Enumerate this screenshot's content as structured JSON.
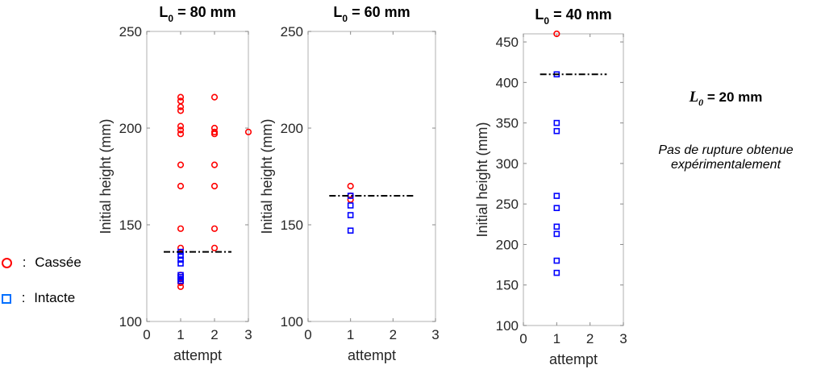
{
  "chart_data": [
    {
      "type": "scatter",
      "title": "L0 = 80 mm",
      "title_main": "L",
      "title_sub": "0",
      "title_rest": " = 80 mm",
      "xlabel": "attempt",
      "ylabel": "Initial height (mm)",
      "xlim": [
        0,
        3
      ],
      "ylim": [
        100,
        250
      ],
      "xticks": [
        0,
        1,
        2,
        3
      ],
      "yticks": [
        100,
        150,
        200,
        250
      ],
      "threshold": 136,
      "threshold_x": [
        0.5,
        2.5
      ],
      "series": [
        {
          "name": "Cassée",
          "marker": "circle",
          "color": "#ff0000",
          "points": [
            [
              1,
              216
            ],
            [
              1,
              214
            ],
            [
              1,
              211
            ],
            [
              1,
              209
            ],
            [
              1,
              201
            ],
            [
              1,
              199
            ],
            [
              1,
              197
            ],
            [
              1,
              181
            ],
            [
              1,
              170
            ],
            [
              1,
              148
            ],
            [
              1,
              138
            ],
            [
              1,
              124
            ],
            [
              1,
              122
            ],
            [
              1,
              120
            ],
            [
              1,
              118
            ],
            [
              2,
              216
            ],
            [
              2,
              200
            ],
            [
              2,
              198
            ],
            [
              2,
              197
            ],
            [
              2,
              181
            ],
            [
              2,
              170
            ],
            [
              2,
              148
            ],
            [
              2,
              138
            ],
            [
              3,
              198
            ]
          ]
        },
        {
          "name": "Intacte",
          "marker": "square",
          "color": "#0000ff",
          "points": [
            [
              1,
              136
            ],
            [
              1,
              134
            ],
            [
              1,
              132
            ],
            [
              1,
              130
            ],
            [
              1,
              124
            ],
            [
              1,
              123
            ],
            [
              1,
              122
            ],
            [
              1,
              121
            ]
          ]
        }
      ]
    },
    {
      "type": "scatter",
      "title": "L0 = 60 mm",
      "title_main": "L",
      "title_sub": "0",
      "title_rest": " = 60 mm",
      "xlabel": "attempt",
      "ylabel": "Initial height (mm)",
      "xlim": [
        0,
        3
      ],
      "ylim": [
        100,
        250
      ],
      "xticks": [
        0,
        1,
        2,
        3
      ],
      "yticks": [
        100,
        150,
        200,
        250
      ],
      "threshold": 165,
      "threshold_x": [
        0.5,
        2.5
      ],
      "series": [
        {
          "name": "Cassée",
          "marker": "circle",
          "color": "#ff0000",
          "points": [
            [
              1,
              170
            ],
            [
              1,
              165
            ],
            [
              1,
              163
            ]
          ]
        },
        {
          "name": "Intacte",
          "marker": "square",
          "color": "#0000ff",
          "points": [
            [
              1,
              165
            ],
            [
              1,
              160
            ],
            [
              1,
              155
            ],
            [
              1,
              147
            ]
          ]
        }
      ]
    },
    {
      "type": "scatter",
      "title": "L0 = 40 mm",
      "title_main": "L",
      "title_sub": "0",
      "title_rest": " = 40 mm",
      "xlabel": "attempt",
      "ylabel": "Initial height (mm)",
      "xlim": [
        0,
        3
      ],
      "ylim": [
        100,
        460
      ],
      "xticks": [
        0,
        1,
        2,
        3
      ],
      "yticks": [
        100,
        150,
        200,
        250,
        300,
        350,
        400,
        450
      ],
      "threshold": 410,
      "threshold_x": [
        0.5,
        2.5
      ],
      "series": [
        {
          "name": "Cassée",
          "marker": "circle",
          "color": "#ff0000",
          "points": [
            [
              1,
              460
            ]
          ]
        },
        {
          "name": "Intacte",
          "marker": "square",
          "color": "#0000ff",
          "points": [
            [
              1,
              410
            ],
            [
              1,
              350
            ],
            [
              1,
              340
            ],
            [
              1,
              260
            ],
            [
              1,
              245
            ],
            [
              1,
              222
            ],
            [
              1,
              213
            ],
            [
              1,
              180
            ],
            [
              1,
              165
            ]
          ]
        }
      ]
    }
  ],
  "legend": {
    "broken": "Cassée",
    "intact": "Intacte",
    "separator": ":"
  },
  "side_note": {
    "title_main": "L",
    "title_sub": "0",
    "title_rest": " = 20 mm",
    "text_line1": "Pas de rupture obtenue",
    "text_line2": "expérimentalement"
  }
}
